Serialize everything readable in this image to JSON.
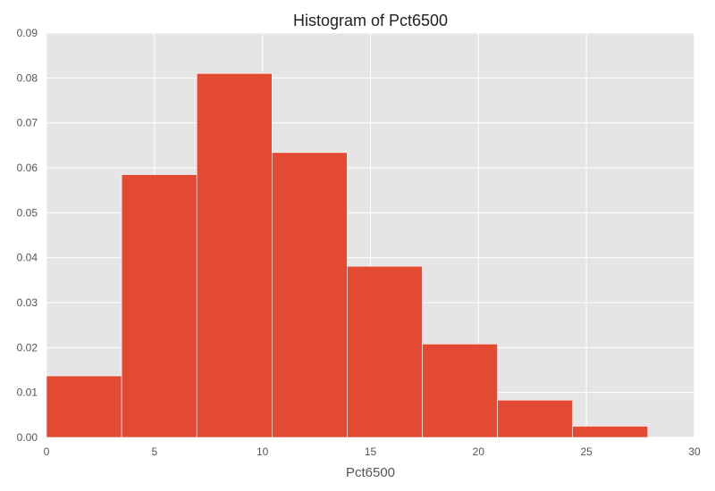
{
  "chart_data": {
    "type": "bar",
    "title": "Histogram of Pct6500",
    "xlabel": "Pct6500",
    "ylabel": "",
    "xlim": [
      0,
      30
    ],
    "ylim": [
      0,
      0.09
    ],
    "xticks": [
      "0",
      "5",
      "10",
      "15",
      "20",
      "25",
      "30"
    ],
    "yticks": [
      "0.00",
      "0.01",
      "0.02",
      "0.03",
      "0.04",
      "0.05",
      "0.06",
      "0.07",
      "0.08",
      "0.09"
    ],
    "bins": [
      {
        "start": 0.0,
        "end": 3.48,
        "value": 0.0137
      },
      {
        "start": 3.48,
        "end": 6.96,
        "value": 0.0585
      },
      {
        "start": 6.96,
        "end": 10.44,
        "value": 0.081
      },
      {
        "start": 10.44,
        "end": 13.92,
        "value": 0.0634
      },
      {
        "start": 13.92,
        "end": 17.4,
        "value": 0.0381
      },
      {
        "start": 17.4,
        "end": 20.88,
        "value": 0.0208
      },
      {
        "start": 20.88,
        "end": 24.36,
        "value": 0.0083
      },
      {
        "start": 24.36,
        "end": 27.84,
        "value": 0.0025
      }
    ],
    "grid": true,
    "colors": {
      "bar": "#E24A33",
      "background": "#E5E5E5",
      "grid": "#FFFFFF"
    }
  }
}
